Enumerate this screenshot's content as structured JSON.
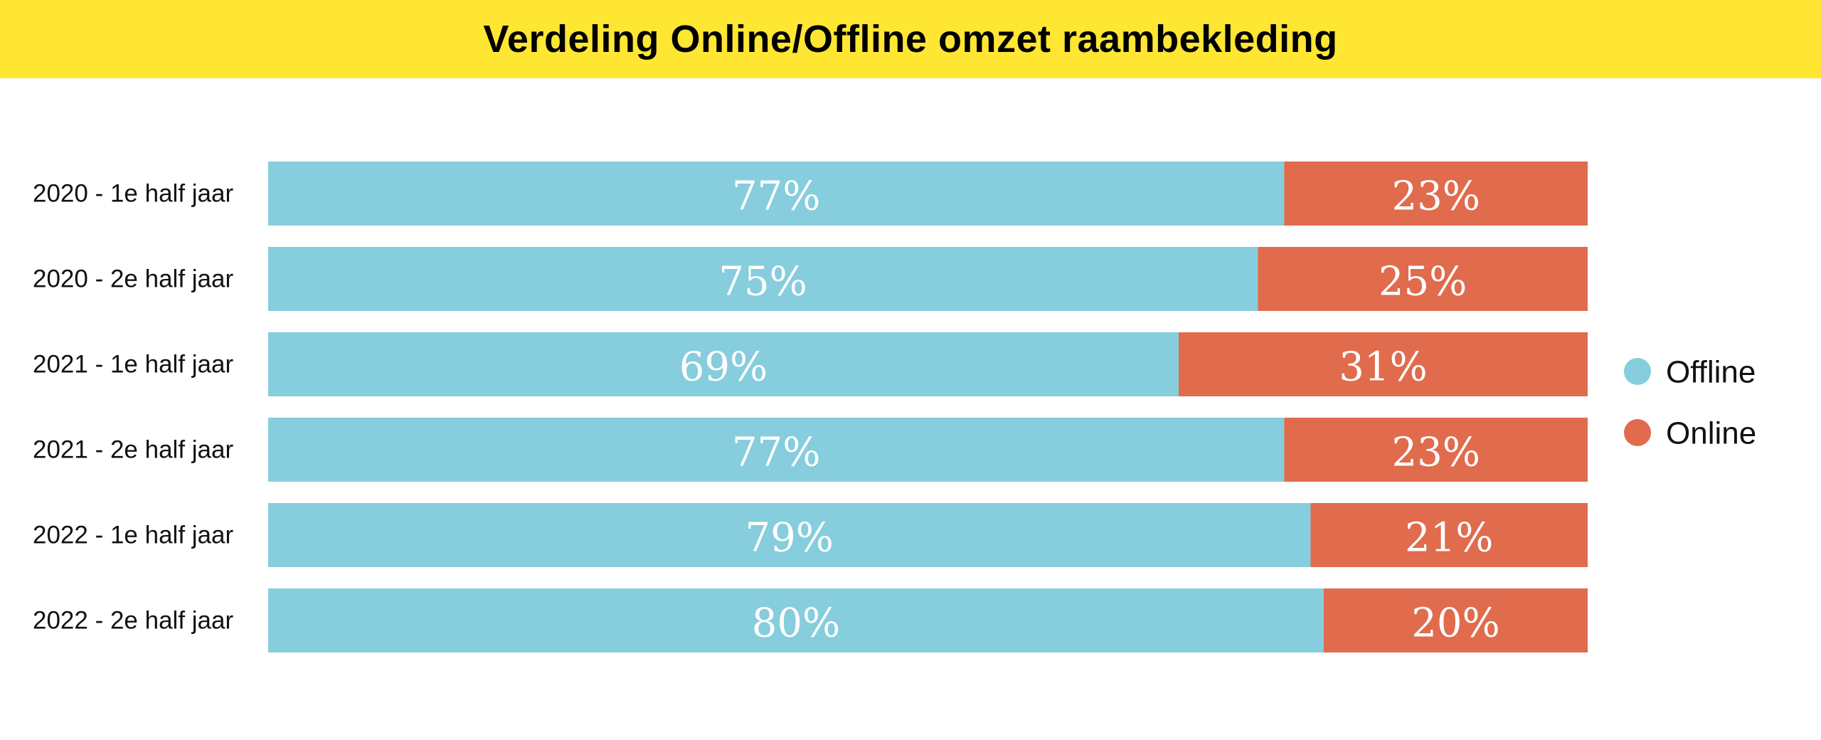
{
  "chart_data": {
    "type": "bar",
    "orientation": "horizontal",
    "stacked": true,
    "title": "Verdeling Online/Offline omzet raambekleding",
    "categories": [
      "2020 - 1e half jaar",
      "2020 - 2e half jaar",
      "2021 - 1e half jaar",
      "2021 - 2e half jaar",
      "2022 - 1e half jaar",
      "2022 - 2e half jaar"
    ],
    "series": [
      {
        "name": "Offline",
        "color": "#86cddd",
        "values": [
          77,
          75,
          69,
          77,
          79,
          80
        ]
      },
      {
        "name": "Online",
        "color": "#e06b4d",
        "values": [
          23,
          25,
          31,
          23,
          21,
          20
        ]
      }
    ],
    "value_suffix": "%",
    "xlim": [
      0,
      100
    ],
    "grid": false,
    "legend": {
      "position": "right",
      "marker": "circle"
    }
  },
  "colors": {
    "title_background": "#ffe633",
    "background": "#ffffff",
    "value_label": "#ffffff"
  }
}
